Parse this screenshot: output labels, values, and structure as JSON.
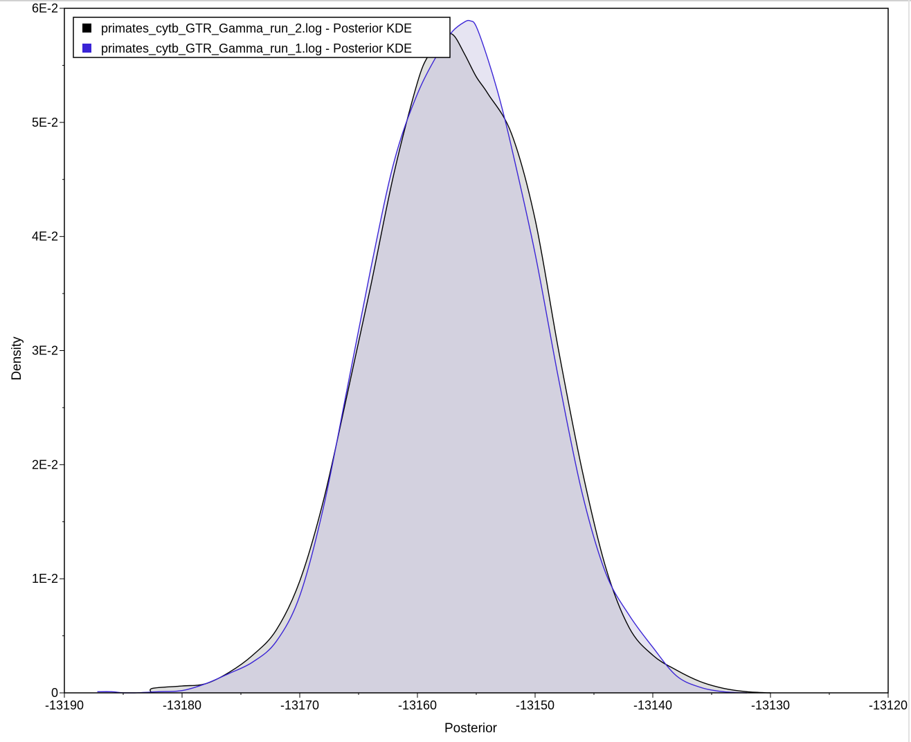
{
  "chart_data": {
    "type": "area",
    "title": "",
    "xlabel": "Posterior",
    "ylabel": "Density",
    "xlim": [
      -13190,
      -13120
    ],
    "ylim": [
      0,
      0.06
    ],
    "x_ticks": [
      -13190,
      -13180,
      -13170,
      -13160,
      -13150,
      -13140,
      -13130,
      -13120
    ],
    "x_tick_labels": [
      "-13190",
      "-13180",
      "-13170",
      "-13160",
      "-13150",
      "-13140",
      "-13130",
      "-13120"
    ],
    "y_ticks": [
      0,
      0.01,
      0.02,
      0.03,
      0.04,
      0.05,
      0.06
    ],
    "y_tick_labels": [
      "0",
      "1E-2",
      "2E-2",
      "3E-2",
      "4E-2",
      "5E-2",
      "6E-2"
    ],
    "grid": false,
    "legend_position": "top-left",
    "series": [
      {
        "name": "primates_cytb_GTR_Gamma_run_2.log - Posterior KDE",
        "line_color": "#000000",
        "fill_color": "#c8c8c8",
        "legend_color": "#000000",
        "x": [
          -13182.6,
          -13182.5,
          -13180,
          -13178,
          -13176,
          -13174,
          -13172,
          -13170,
          -13168,
          -13166,
          -13164,
          -13162,
          -13160,
          -13159,
          -13158,
          -13157,
          -13156,
          -13155,
          -13154,
          -13152,
          -13150,
          -13148,
          -13146,
          -13144,
          -13142,
          -13140,
          -13138,
          -13136,
          -13134,
          -13132,
          -13130
        ],
        "y": [
          0,
          0.0004,
          0.0006,
          0.0008,
          0.0018,
          0.0033,
          0.0055,
          0.0098,
          0.0168,
          0.026,
          0.0355,
          0.0455,
          0.0535,
          0.056,
          0.0575,
          0.0577,
          0.056,
          0.054,
          0.0525,
          0.049,
          0.0415,
          0.03,
          0.0195,
          0.011,
          0.0057,
          0.0033,
          0.002,
          0.001,
          0.0004,
          0.0001,
          0
        ]
      },
      {
        "name": "primates_cytb_GTR_Gamma_run_1.log - Posterior KDE",
        "line_color": "#3a24d6",
        "fill_color": "#c4bedf",
        "legend_color": "#3a24d6",
        "x": [
          -13187.2,
          -13186,
          -13185,
          -13184,
          -13182,
          -13180,
          -13178,
          -13176,
          -13174,
          -13172,
          -13170,
          -13168,
          -13166,
          -13164,
          -13162,
          -13160,
          -13158,
          -13157,
          -13156,
          -13155.5,
          -13155,
          -13154,
          -13153,
          -13152,
          -13150,
          -13148,
          -13146,
          -13144,
          -13142,
          -13140,
          -13138,
          -13136,
          -13134,
          -13132
        ],
        "y": [
          0.0001,
          0.0001,
          0,
          0,
          0.0001,
          0.0002,
          0.0008,
          0.0017,
          0.0027,
          0.0045,
          0.0085,
          0.0162,
          0.0265,
          0.037,
          0.0465,
          0.0525,
          0.0565,
          0.058,
          0.0588,
          0.0589,
          0.0584,
          0.0555,
          0.052,
          0.0478,
          0.0385,
          0.0275,
          0.0175,
          0.0105,
          0.0068,
          0.004,
          0.0015,
          0.0005,
          0.0001,
          0
        ]
      }
    ]
  }
}
